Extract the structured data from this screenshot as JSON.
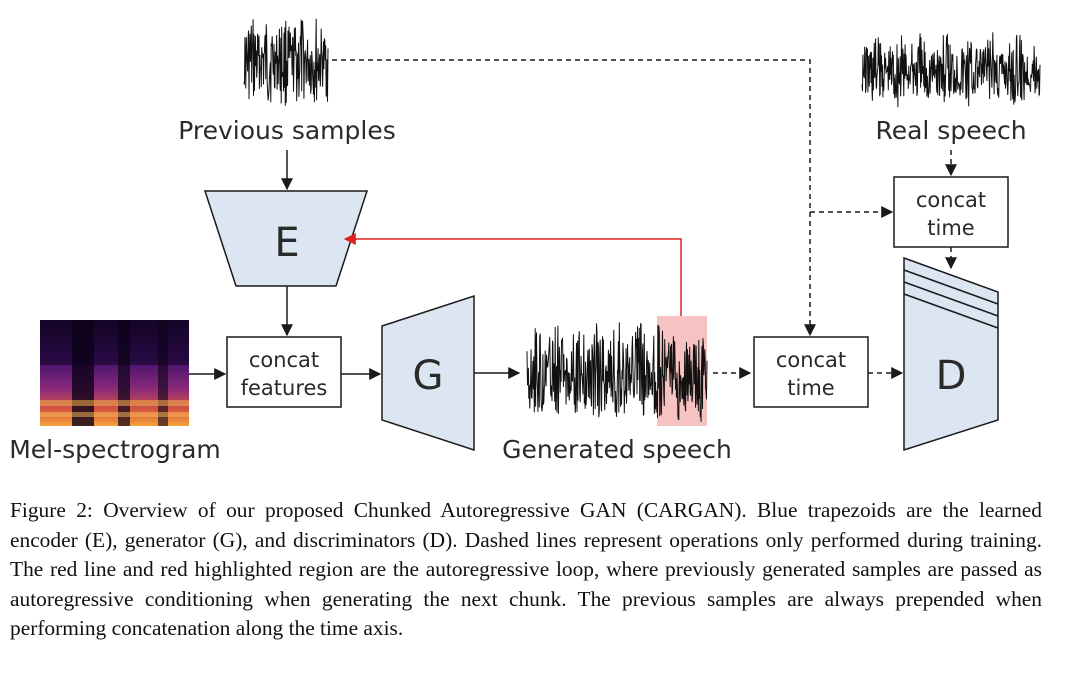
{
  "diagram": {
    "labels": {
      "previous_samples": "Previous samples",
      "real_speech": "Real speech",
      "mel_spectrogram": "Mel-spectrogram",
      "generated_speech": "Generated speech"
    },
    "blocks": {
      "encoder": "E",
      "generator": "G",
      "discriminator": "D"
    },
    "boxes": {
      "concat_features": [
        "concat",
        "features"
      ],
      "concat_time_left": [
        "concat",
        "time"
      ],
      "concat_time_top": [
        "concat",
        "time"
      ]
    },
    "colors": {
      "block_fill": "#dce6f2",
      "autoregressive_line": "#e0201e",
      "highlight": "#f6c2c2",
      "stroke": "#1a1a1a"
    }
  },
  "caption": "Figure 2: Overview of our proposed Chunked Autoregressive GAN (CARGAN). Blue trapezoids are the learned encoder (E), generator (G), and discriminators (D). Dashed lines represent operations only performed during training. The red line and red highlighted region are the autoregressive loop, where previously generated samples are passed as autoregressive conditioning when generating the next chunk. The previous samples are always prepended when performing concatenation along the time axis."
}
